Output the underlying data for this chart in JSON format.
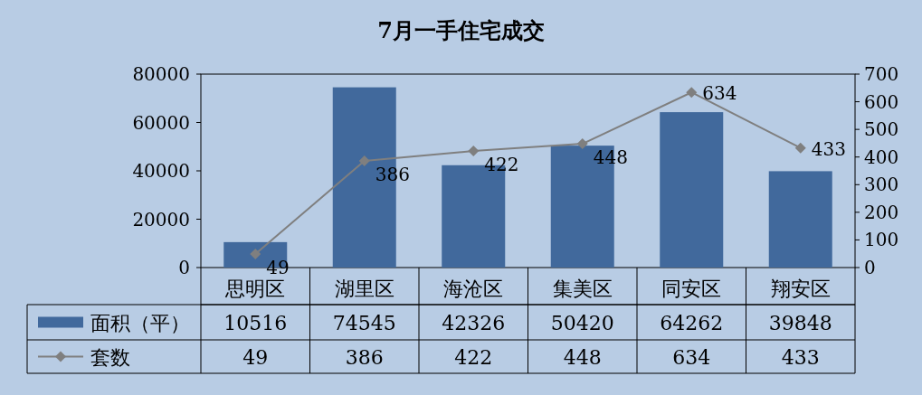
{
  "chart_data": {
    "type": "bar",
    "title": "7月一手住宅成交",
    "categories": [
      "思明区",
      "湖里区",
      "海沧区",
      "集美区",
      "同安区",
      "翔安区"
    ],
    "series": [
      {
        "name": "面积（平）",
        "color": "#41699c",
        "values": [
          10516,
          74545,
          42326,
          50420,
          64262,
          39848
        ]
      },
      {
        "name": "套数",
        "type": "line",
        "axis": "y2",
        "color": "#7f7f7f",
        "marker": "diamond",
        "values": [
          49,
          386,
          422,
          448,
          634,
          433
        ]
      }
    ],
    "ylim": [
      0,
      80000
    ],
    "yticks": [
      0,
      20000,
      40000,
      60000,
      80000
    ],
    "y2lim": [
      0,
      700
    ],
    "y2ticks": [
      0,
      100,
      200,
      300,
      400,
      500,
      600,
      700
    ],
    "data_labels": true,
    "legend": "bottom",
    "annotations": [
      "49",
      "386",
      "422",
      "448",
      "634",
      "433"
    ]
  }
}
